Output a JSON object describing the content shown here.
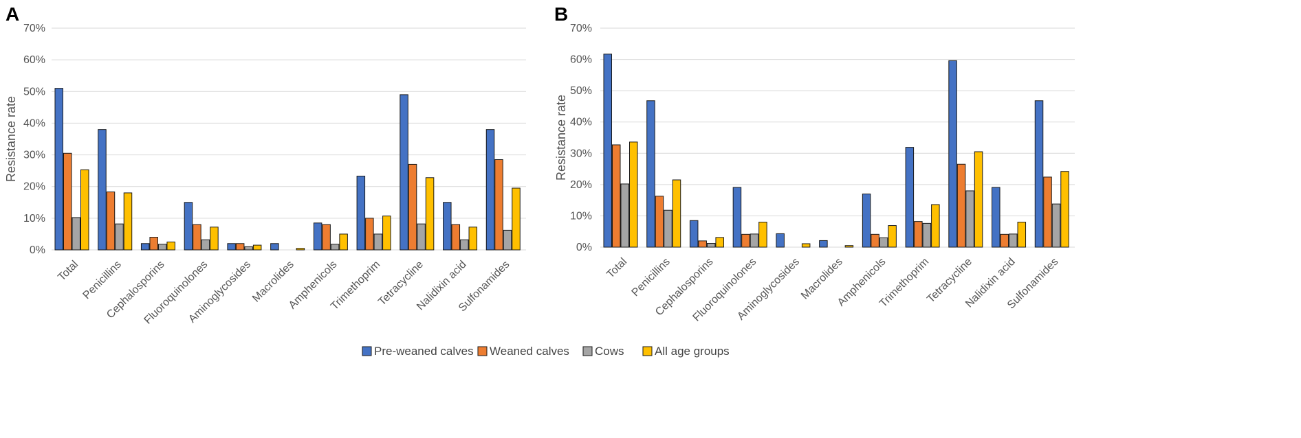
{
  "chart_data": [
    {
      "panel": "A",
      "type": "bar",
      "ylabel": "Resistance rate",
      "ylim": [
        0,
        70
      ],
      "yticks": [
        "0%",
        "10%",
        "20%",
        "30%",
        "40%",
        "50%",
        "60%",
        "70%"
      ],
      "categories": [
        "Total",
        "Penicillins",
        "Cephalosporins",
        "Fluoroquinolones",
        "Aminoglycosides",
        "Macrolides",
        "Amphenicols",
        "Trimethoprim",
        "Tetracycline",
        "Nalidixin acid",
        "Sulfonamides"
      ],
      "series": [
        {
          "name": "Pre-weaned calves",
          "values": [
            51,
            38,
            2,
            15,
            2,
            2,
            8.5,
            23.3,
            49,
            15,
            38
          ]
        },
        {
          "name": "Weaned calves",
          "values": [
            30.5,
            18.3,
            4,
            8,
            2,
            0,
            8,
            10,
            27,
            8,
            28.5
          ]
        },
        {
          "name": "Cows",
          "values": [
            10.2,
            8.2,
            1.8,
            3.2,
            1,
            0,
            1.8,
            5,
            8.2,
            3.2,
            6.2
          ]
        },
        {
          "name": "All age groups",
          "values": [
            25.3,
            18,
            2.5,
            7.2,
            1.5,
            0.5,
            5,
            10.7,
            22.8,
            7.2,
            19.5
          ]
        }
      ]
    },
    {
      "panel": "B",
      "type": "bar",
      "ylabel": "Resistance rate",
      "ylim": [
        0,
        70
      ],
      "yticks": [
        "0%",
        "10%",
        "20%",
        "30%",
        "40%",
        "50%",
        "60%",
        "70%"
      ],
      "categories": [
        "Total",
        "Penicillins",
        "Cephalosporins",
        "Fluoroquinolones",
        "Aminoglycosides",
        "Macrolides",
        "Amphenicols",
        "Trimethoprim",
        "Tetracycline",
        "Nalidixin acid",
        "Sulfonamides"
      ],
      "series": [
        {
          "name": "Pre-weaned calves",
          "values": [
            61.7,
            46.8,
            8.5,
            19.1,
            4.3,
            2.1,
            17,
            31.9,
            59.6,
            19.1,
            46.8
          ]
        },
        {
          "name": "Weaned calves",
          "values": [
            32.7,
            16.3,
            2,
            4.1,
            0,
            0,
            4.1,
            8.2,
            26.5,
            4.1,
            22.4
          ]
        },
        {
          "name": "Cows",
          "values": [
            20.2,
            11.8,
            1.2,
            4.2,
            0,
            0,
            3,
            7.6,
            18,
            4.2,
            13.8
          ]
        },
        {
          "name": "All age groups",
          "values": [
            33.6,
            21.5,
            3.1,
            8,
            1.1,
            0.5,
            6.9,
            13.6,
            30.5,
            8,
            24.2
          ]
        }
      ]
    }
  ],
  "legend": [
    {
      "label": "Pre-weaned calves",
      "color": "#4472C4"
    },
    {
      "label": "Weaned calves",
      "color": "#ED7D31"
    },
    {
      "label": "Cows",
      "color": "#A5A5A5"
    },
    {
      "label": "All age groups",
      "color": "#FFC000"
    }
  ],
  "colors": {
    "grid": "#d9d9d9",
    "bar_outline": "#1a1a1a"
  }
}
